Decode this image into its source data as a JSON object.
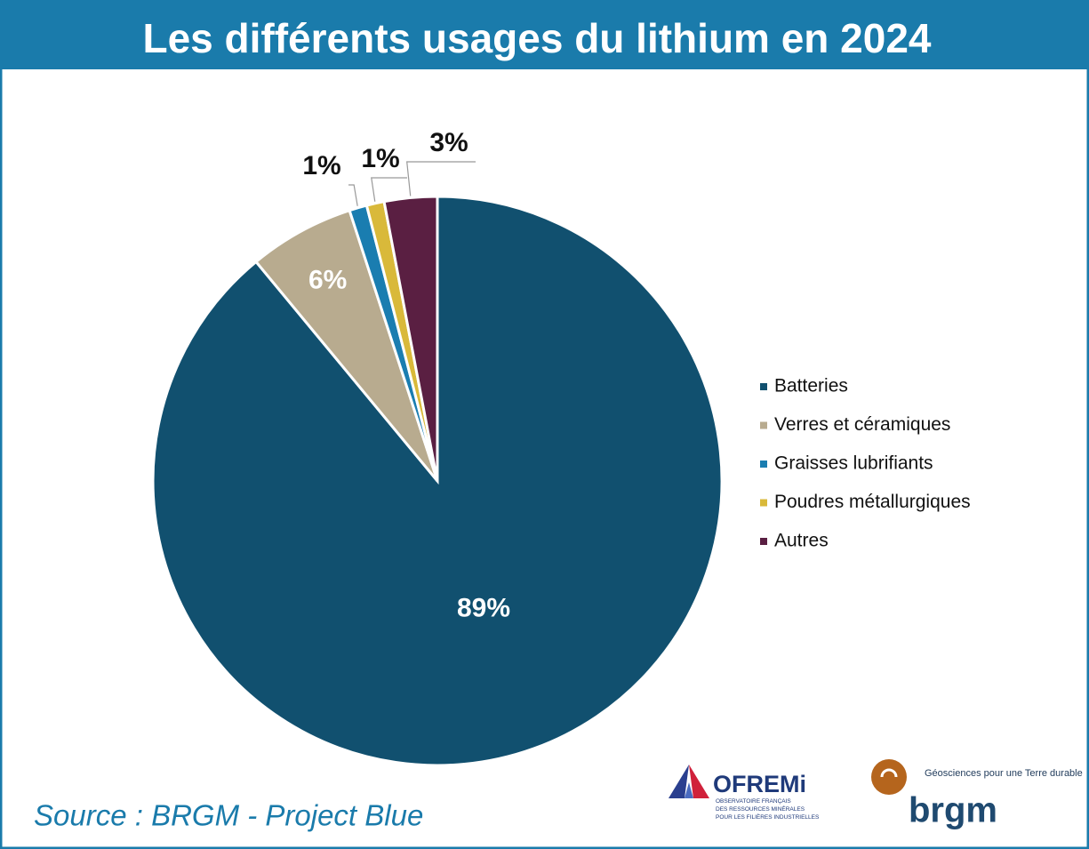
{
  "chart_data": {
    "type": "pie",
    "title": "Les différents usages du lithium en 2024",
    "categories": [
      "Batteries",
      "Verres et céramiques",
      "Graisses lubrifiants",
      "Poudres métallurgiques",
      "Autres"
    ],
    "values": [
      89,
      6,
      1,
      1,
      3
    ],
    "value_labels": [
      "89%",
      "6%",
      "1%",
      "1%",
      "3%"
    ],
    "colors": [
      "#11506f",
      "#b8ab8f",
      "#1a7db0",
      "#d9b93a",
      "#5a1f42"
    ],
    "legend": "right"
  },
  "source": "Source : BRGM - Project Blue",
  "logos": {
    "ofremi": {
      "name": "OFREMi",
      "lines": [
        "OBSERVATOIRE FRANÇAIS",
        "DES RESSOURCES MINÉRALES",
        "POUR LES FILIÈRES INDUSTRIELLES"
      ]
    },
    "brgm": {
      "name": "brgm",
      "tagline": "Géosciences pour une Terre durable"
    }
  }
}
